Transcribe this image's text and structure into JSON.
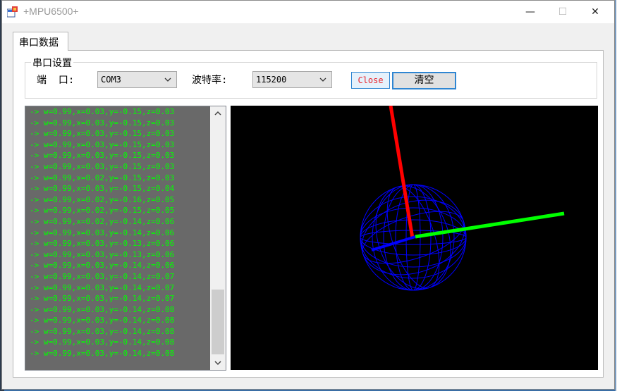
{
  "window": {
    "title": "+MPU6500+",
    "caption": {
      "minimize": "—",
      "maximize": "☐",
      "close": "✕"
    }
  },
  "tabs": [
    {
      "label": "串口数据"
    }
  ],
  "serial_settings": {
    "group_label": "串口设置",
    "port_label": "端  口:",
    "port_value": "COM3",
    "baud_label": "波特率:",
    "baud_value": "115200",
    "open_button": "Close",
    "clear_button": "清空"
  },
  "console": {
    "lines": [
      "-> w=0.99,x=0.03,y=-0.15,z=0.03",
      "-> w=0.99,x=0.03,y=-0.15,z=0.03",
      "-> w=0.99,x=0.03,y=-0.15,z=0.03",
      "-> w=0.99,x=0.03,y=-0.15,z=0.03",
      "-> w=0.99,x=0.03,y=-0.15,z=0.03",
      "-> w=0.99,x=0.03,y=-0.15,z=0.03",
      "-> w=0.99,x=0.02,y=-0.15,z=0.03",
      "-> w=0.99,x=0.03,y=-0.15,z=0.04",
      "-> w=0.99,x=0.02,y=-0.16,z=0.05",
      "-> w=0.99,x=0.02,y=-0.15,z=0.05",
      "-> w=0.99,x=0.02,y=-0.14,z=0.06",
      "-> w=0.99,x=0.03,y=-0.14,z=0.06",
      "-> w=0.99,x=0.03,y=-0.13,z=0.06",
      "-> w=0.99,x=0.03,y=-0.13,z=0.06",
      "-> w=0.99,x=0.03,y=-0.14,z=0.06",
      "-> w=0.99,x=0.03,y=-0.14,z=0.07",
      "-> w=0.99,x=0.03,y=-0.14,z=0.07",
      "-> w=0.99,x=0.03,y=-0.14,z=0.07",
      "-> w=0.99,x=0.03,y=-0.14,z=0.08",
      "-> w=0.99,x=0.03,y=-0.14,z=0.08",
      "-> w=0.99,x=0.03,y=-0.14,z=0.08",
      "-> w=0.99,x=0.03,y=-0.14,z=0.08",
      "-> w=0.99,x=0.03,y=-0.14,z=0.08"
    ],
    "scroll_thumb_fraction": 0.25
  },
  "viewport": {
    "background": "#000000",
    "sphere_color": "#0000ff",
    "axis_colors": {
      "x": "#00ff00",
      "y": "#ff0000",
      "z": "#0000ff"
    }
  },
  "colors": {
    "console_bg": "#696969",
    "console_text": "#00ff00",
    "button_accent": "#2f86d2",
    "close_text": "#e8232b"
  }
}
